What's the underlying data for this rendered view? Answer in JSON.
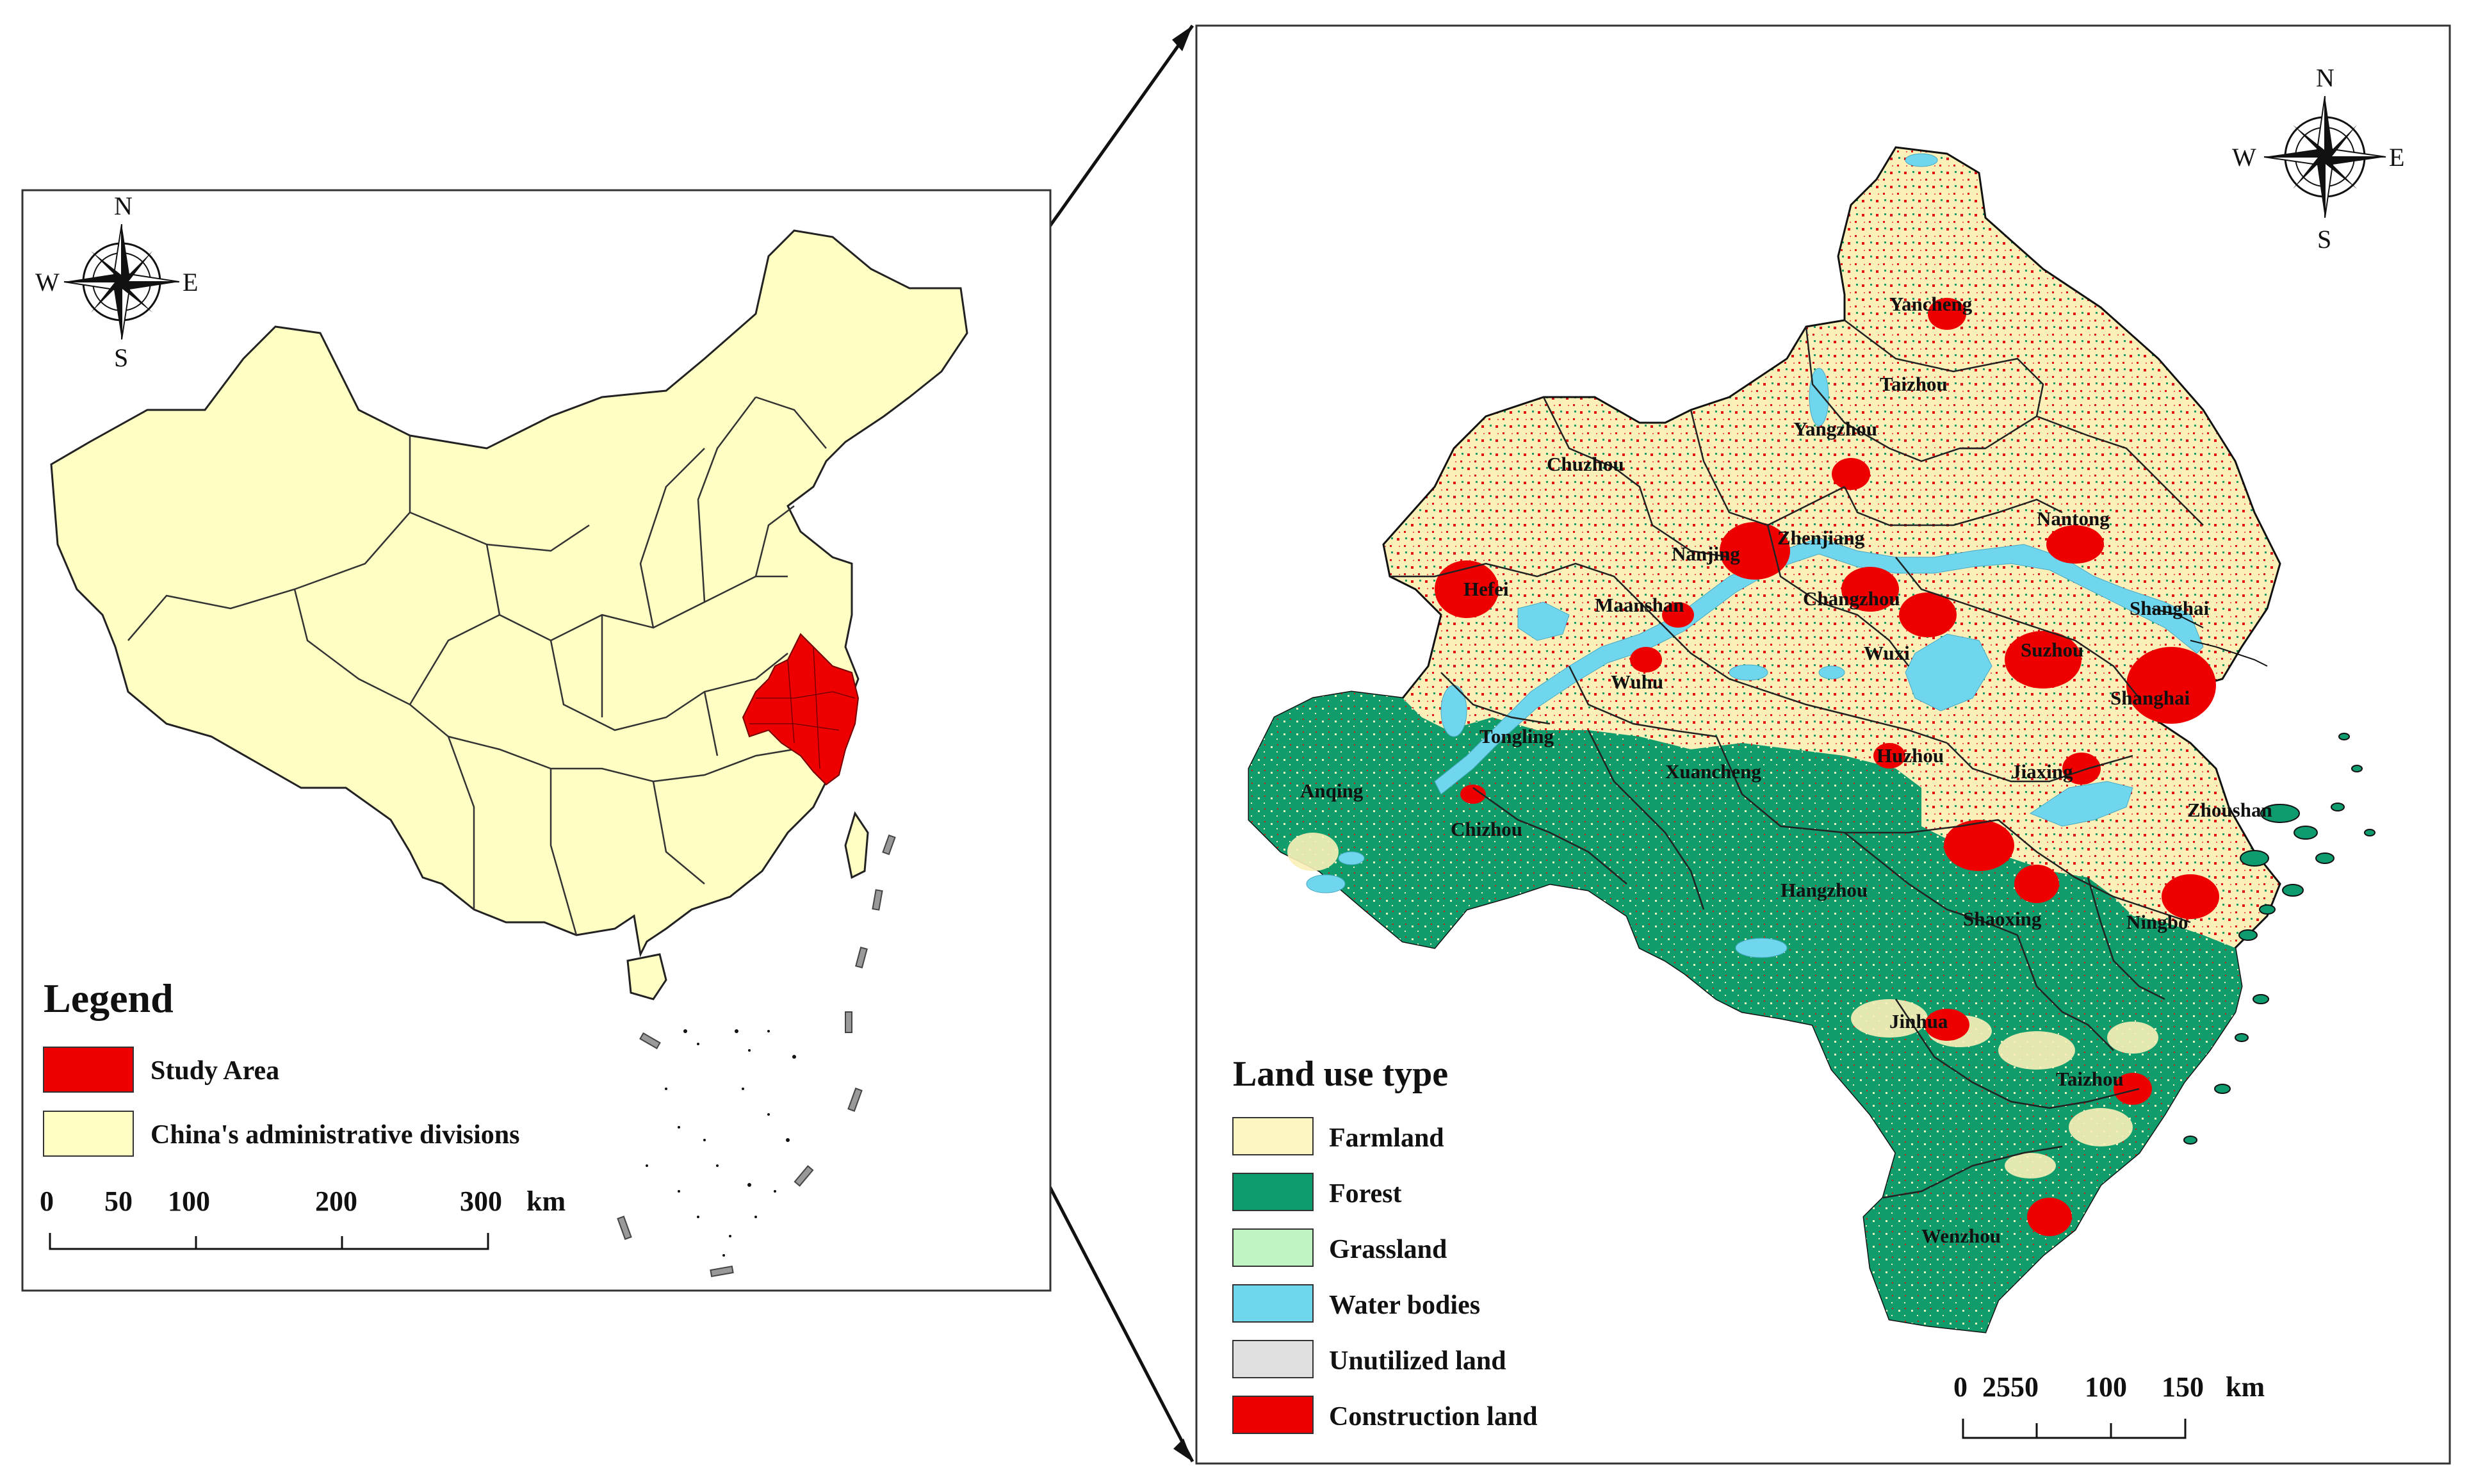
{
  "china_map": {
    "compass": {
      "n": "N",
      "s": "S",
      "e": "E",
      "w": "W"
    },
    "legend": {
      "title": "Legend",
      "items": [
        {
          "label": "Study Area",
          "color": "#ee0000"
        },
        {
          "label": "China's administrative divisions",
          "color": "#ffffc4"
        }
      ]
    },
    "scale_bar": {
      "ticks": [
        "0",
        "50",
        "100",
        "200",
        "300"
      ],
      "unit": "km"
    }
  },
  "study_area_map": {
    "compass": {
      "n": "N",
      "s": "S",
      "e": "E",
      "w": "W"
    },
    "legend": {
      "title": "Land use type",
      "items": [
        {
          "label": "Farmland",
          "color": "#fdf6c0"
        },
        {
          "label": "Forest",
          "color": "#0e9b70"
        },
        {
          "label": "Grassland",
          "color": "#c0f5c2"
        },
        {
          "label": "Water bodies",
          "color": "#6fd6ee"
        },
        {
          "label": "Unutilized land",
          "color": "#e0e0e0"
        },
        {
          "label": "Construction land",
          "color": "#ee0000"
        }
      ]
    },
    "scale_bar": {
      "ticks": [
        "0",
        "2550",
        "100",
        "150"
      ],
      "unit": "km"
    },
    "cities": [
      "Yancheng",
      "Taizhou",
      "Yangzhou",
      "Chuzhou",
      "Nantong",
      "Nanjing",
      "Zhenjiang",
      "Hefei",
      "Maanshan",
      "Changzhou",
      "Shanghai",
      "Wuxi",
      "Suzhou",
      "Shanghai",
      "Wuhu",
      "Tongling",
      "Huzhou",
      "Jiaxing",
      "Xuancheng",
      "Anqing",
      "Chizhou",
      "Zhoushan",
      "Hangzhou",
      "Shaoxing",
      "Ningbo",
      "Jinhua",
      "Taizhou",
      "Wenzhou"
    ]
  }
}
